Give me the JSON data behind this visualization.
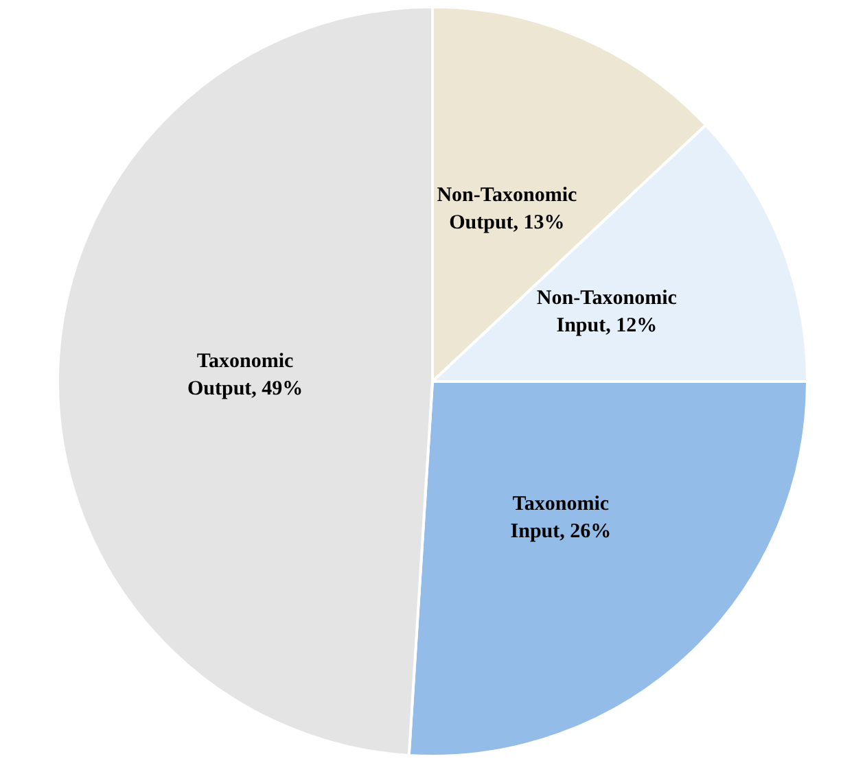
{
  "chart_data": {
    "type": "pie",
    "categories": [
      "Non-Taxonomic Output",
      "Non-Taxonomic Input",
      "Taxonomic Input",
      "Taxonomic Output"
    ],
    "values": [
      13,
      12,
      26,
      49
    ],
    "value_labels": [
      "13%",
      "12%",
      "26%",
      "49%"
    ],
    "colors": [
      "#ece6d2",
      "#e6f0fb",
      "#94bce8",
      "#e4e4e4"
    ],
    "legend": false
  }
}
